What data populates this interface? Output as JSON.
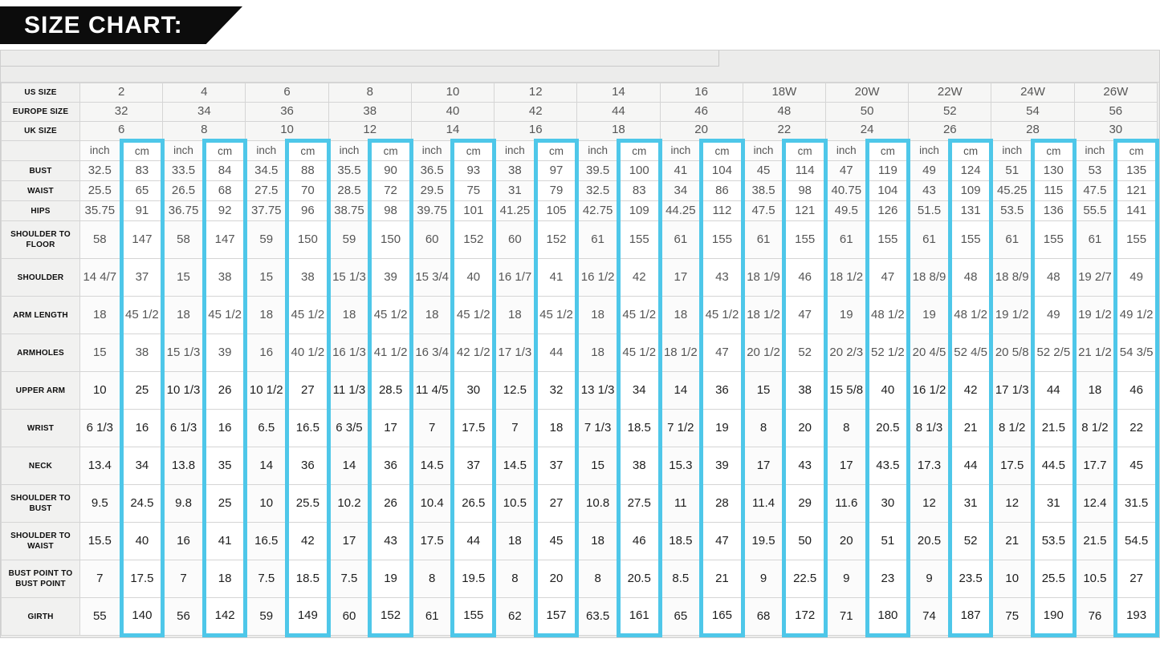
{
  "banner": {
    "title": "SIZE CHART:"
  },
  "colors": {
    "highlight": "#4ec7e9",
    "banner_bg": "#0c0c0c",
    "banner_text": "#ffffff"
  },
  "table": {
    "units": {
      "inch": "inch",
      "cm": "cm"
    },
    "size_rows": [
      {
        "label": "US SIZE",
        "values": [
          "2",
          "4",
          "6",
          "8",
          "10",
          "12",
          "14",
          "16",
          "18W",
          "20W",
          "22W",
          "24W",
          "26W"
        ]
      },
      {
        "label": "EUROPE SIZE",
        "values": [
          "32",
          "34",
          "36",
          "38",
          "40",
          "42",
          "44",
          "46",
          "48",
          "50",
          "52",
          "54",
          "56"
        ]
      },
      {
        "label": "UK SIZE",
        "values": [
          "6",
          "8",
          "10",
          "12",
          "14",
          "16",
          "18",
          "20",
          "22",
          "24",
          "26",
          "28",
          "30"
        ]
      }
    ],
    "measurement_rows": [
      {
        "label": "BUST",
        "pairs": [
          [
            "32.5",
            "83"
          ],
          [
            "33.5",
            "84"
          ],
          [
            "34.5",
            "88"
          ],
          [
            "35.5",
            "90"
          ],
          [
            "36.5",
            "93"
          ],
          [
            "38",
            "97"
          ],
          [
            "39.5",
            "100"
          ],
          [
            "41",
            "104"
          ],
          [
            "45",
            "114"
          ],
          [
            "47",
            "119"
          ],
          [
            "49",
            "124"
          ],
          [
            "51",
            "130"
          ],
          [
            "53",
            "135"
          ]
        ]
      },
      {
        "label": "WAIST",
        "pairs": [
          [
            "25.5",
            "65"
          ],
          [
            "26.5",
            "68"
          ],
          [
            "27.5",
            "70"
          ],
          [
            "28.5",
            "72"
          ],
          [
            "29.5",
            "75"
          ],
          [
            "31",
            "79"
          ],
          [
            "32.5",
            "83"
          ],
          [
            "34",
            "86"
          ],
          [
            "38.5",
            "98"
          ],
          [
            "40.75",
            "104"
          ],
          [
            "43",
            "109"
          ],
          [
            "45.25",
            "115"
          ],
          [
            "47.5",
            "121"
          ]
        ]
      },
      {
        "label": "HIPS",
        "pairs": [
          [
            "35.75",
            "91"
          ],
          [
            "36.75",
            "92"
          ],
          [
            "37.75",
            "96"
          ],
          [
            "38.75",
            "98"
          ],
          [
            "39.75",
            "101"
          ],
          [
            "41.25",
            "105"
          ],
          [
            "42.75",
            "109"
          ],
          [
            "44.25",
            "112"
          ],
          [
            "47.5",
            "121"
          ],
          [
            "49.5",
            "126"
          ],
          [
            "51.5",
            "131"
          ],
          [
            "53.5",
            "136"
          ],
          [
            "55.5",
            "141"
          ]
        ]
      },
      {
        "label": "SHOULDER TO FLOOR",
        "pairs": [
          [
            "58",
            "147"
          ],
          [
            "58",
            "147"
          ],
          [
            "59",
            "150"
          ],
          [
            "59",
            "150"
          ],
          [
            "60",
            "152"
          ],
          [
            "60",
            "152"
          ],
          [
            "61",
            "155"
          ],
          [
            "61",
            "155"
          ],
          [
            "61",
            "155"
          ],
          [
            "61",
            "155"
          ],
          [
            "61",
            "155"
          ],
          [
            "61",
            "155"
          ],
          [
            "61",
            "155"
          ]
        ]
      },
      {
        "label": "SHOULDER",
        "pairs": [
          [
            "14 4/7",
            "37"
          ],
          [
            "15",
            "38"
          ],
          [
            "15",
            "38"
          ],
          [
            "15 1/3",
            "39"
          ],
          [
            "15 3/4",
            "40"
          ],
          [
            "16 1/7",
            "41"
          ],
          [
            "16 1/2",
            "42"
          ],
          [
            "17",
            "43"
          ],
          [
            "18 1/9",
            "46"
          ],
          [
            "18 1/2",
            "47"
          ],
          [
            "18 8/9",
            "48"
          ],
          [
            "18 8/9",
            "48"
          ],
          [
            "19 2/7",
            "49"
          ]
        ]
      },
      {
        "label": "ARM LENGTH",
        "pairs": [
          [
            "18",
            "45 1/2"
          ],
          [
            "18",
            "45 1/2"
          ],
          [
            "18",
            "45 1/2"
          ],
          [
            "18",
            "45 1/2"
          ],
          [
            "18",
            "45 1/2"
          ],
          [
            "18",
            "45 1/2"
          ],
          [
            "18",
            "45 1/2"
          ],
          [
            "18",
            "45 1/2"
          ],
          [
            "18 1/2",
            "47"
          ],
          [
            "19",
            "48 1/2"
          ],
          [
            "19",
            "48 1/2"
          ],
          [
            "19 1/2",
            "49"
          ],
          [
            "19 1/2",
            "49 1/2"
          ]
        ]
      },
      {
        "label": "ARMHOLES",
        "pairs": [
          [
            "15",
            "38"
          ],
          [
            "15 1/3",
            "39"
          ],
          [
            "16",
            "40 1/2"
          ],
          [
            "16 1/3",
            "41 1/2"
          ],
          [
            "16 3/4",
            "42 1/2"
          ],
          [
            "17 1/3",
            "44"
          ],
          [
            "18",
            "45 1/2"
          ],
          [
            "18 1/2",
            "47"
          ],
          [
            "20 1/2",
            "52"
          ],
          [
            "20 2/3",
            "52 1/2"
          ],
          [
            "20 4/5",
            "52 4/5"
          ],
          [
            "20 5/8",
            "52 2/5"
          ],
          [
            "21 1/2",
            "54 3/5"
          ]
        ]
      },
      {
        "label": "UPPER ARM",
        "pairs": [
          [
            "10",
            "25"
          ],
          [
            "10 1/3",
            "26"
          ],
          [
            "10 1/2",
            "27"
          ],
          [
            "11 1/3",
            "28.5"
          ],
          [
            "11 4/5",
            "30"
          ],
          [
            "12.5",
            "32"
          ],
          [
            "13 1/3",
            "34"
          ],
          [
            "14",
            "36"
          ],
          [
            "15",
            "38"
          ],
          [
            "15 5/8",
            "40"
          ],
          [
            "16 1/2",
            "42"
          ],
          [
            "17 1/3",
            "44"
          ],
          [
            "18",
            "46"
          ]
        ]
      },
      {
        "label": "WRIST",
        "pairs": [
          [
            "6 1/3",
            "16"
          ],
          [
            "6 1/3",
            "16"
          ],
          [
            "6.5",
            "16.5"
          ],
          [
            "6 3/5",
            "17"
          ],
          [
            "7",
            "17.5"
          ],
          [
            "7",
            "18"
          ],
          [
            "7 1/3",
            "18.5"
          ],
          [
            "7 1/2",
            "19"
          ],
          [
            "8",
            "20"
          ],
          [
            "8",
            "20.5"
          ],
          [
            "8 1/3",
            "21"
          ],
          [
            "8 1/2",
            "21.5"
          ],
          [
            "8 1/2",
            "22"
          ]
        ]
      },
      {
        "label": "NECK",
        "pairs": [
          [
            "13.4",
            "34"
          ],
          [
            "13.8",
            "35"
          ],
          [
            "14",
            "36"
          ],
          [
            "14",
            "36"
          ],
          [
            "14.5",
            "37"
          ],
          [
            "14.5",
            "37"
          ],
          [
            "15",
            "38"
          ],
          [
            "15.3",
            "39"
          ],
          [
            "17",
            "43"
          ],
          [
            "17",
            "43.5"
          ],
          [
            "17.3",
            "44"
          ],
          [
            "17.5",
            "44.5"
          ],
          [
            "17.7",
            "45"
          ]
        ]
      },
      {
        "label": "SHOULDER TO BUST",
        "pairs": [
          [
            "9.5",
            "24.5"
          ],
          [
            "9.8",
            "25"
          ],
          [
            "10",
            "25.5"
          ],
          [
            "10.2",
            "26"
          ],
          [
            "10.4",
            "26.5"
          ],
          [
            "10.5",
            "27"
          ],
          [
            "10.8",
            "27.5"
          ],
          [
            "11",
            "28"
          ],
          [
            "11.4",
            "29"
          ],
          [
            "11.6",
            "30"
          ],
          [
            "12",
            "31"
          ],
          [
            "12",
            "31"
          ],
          [
            "12.4",
            "31.5"
          ]
        ]
      },
      {
        "label": "SHOULDER TO WAIST",
        "pairs": [
          [
            "15.5",
            "40"
          ],
          [
            "16",
            "41"
          ],
          [
            "16.5",
            "42"
          ],
          [
            "17",
            "43"
          ],
          [
            "17.5",
            "44"
          ],
          [
            "18",
            "45"
          ],
          [
            "18",
            "46"
          ],
          [
            "18.5",
            "47"
          ],
          [
            "19.5",
            "50"
          ],
          [
            "20",
            "51"
          ],
          [
            "20.5",
            "52"
          ],
          [
            "21",
            "53.5"
          ],
          [
            "21.5",
            "54.5"
          ]
        ]
      },
      {
        "label": "BUST POINT TO BUST POINT",
        "pairs": [
          [
            "7",
            "17.5"
          ],
          [
            "7",
            "18"
          ],
          [
            "7.5",
            "18.5"
          ],
          [
            "7.5",
            "19"
          ],
          [
            "8",
            "19.5"
          ],
          [
            "8",
            "20"
          ],
          [
            "8",
            "20.5"
          ],
          [
            "8.5",
            "21"
          ],
          [
            "9",
            "22.5"
          ],
          [
            "9",
            "23"
          ],
          [
            "9",
            "23.5"
          ],
          [
            "10",
            "25.5"
          ],
          [
            "10.5",
            "27"
          ]
        ]
      },
      {
        "label": "GIRTH",
        "pairs": [
          [
            "55",
            "140"
          ],
          [
            "56",
            "142"
          ],
          [
            "59",
            "149"
          ],
          [
            "60",
            "152"
          ],
          [
            "61",
            "155"
          ],
          [
            "62",
            "157"
          ],
          [
            "63.5",
            "161"
          ],
          [
            "65",
            "165"
          ],
          [
            "68",
            "172"
          ],
          [
            "71",
            "180"
          ],
          [
            "74",
            "187"
          ],
          [
            "75",
            "190"
          ],
          [
            "76",
            "193"
          ]
        ]
      }
    ]
  }
}
